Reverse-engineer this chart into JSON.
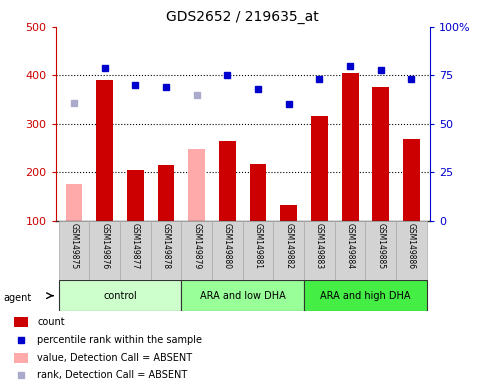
{
  "title": "GDS2652 / 219635_at",
  "categories": [
    "GSM149875",
    "GSM149876",
    "GSM149877",
    "GSM149878",
    "GSM149879",
    "GSM149880",
    "GSM149881",
    "GSM149882",
    "GSM149883",
    "GSM149884",
    "GSM149885",
    "GSM149886"
  ],
  "bar_values": [
    175,
    390,
    205,
    215,
    248,
    265,
    218,
    132,
    317,
    405,
    375,
    268
  ],
  "bar_absent": [
    true,
    false,
    false,
    false,
    true,
    false,
    false,
    false,
    false,
    false,
    false,
    false
  ],
  "rank_values": [
    61,
    79,
    70,
    69,
    65,
    75,
    68,
    60,
    73,
    80,
    78,
    73
  ],
  "rank_absent": [
    true,
    false,
    false,
    false,
    true,
    false,
    false,
    false,
    false,
    false,
    false,
    false
  ],
  "ylim_left": [
    100,
    500
  ],
  "ylim_right": [
    0,
    100
  ],
  "yticks_left": [
    100,
    200,
    300,
    400,
    500
  ],
  "yticks_right": [
    0,
    25,
    50,
    75,
    100
  ],
  "groups": [
    {
      "label": "control",
      "start": 0,
      "end": 3,
      "color": "#ccffcc"
    },
    {
      "label": "ARA and low DHA",
      "start": 4,
      "end": 7,
      "color": "#99ff99"
    },
    {
      "label": "ARA and high DHA",
      "start": 8,
      "end": 11,
      "color": "#44ee44"
    }
  ],
  "bar_color_present": "#cc0000",
  "bar_color_absent": "#ffaaaa",
  "rank_color_present": "#0000cc",
  "rank_color_absent": "#aaaacc",
  "legend": [
    {
      "label": "count",
      "color": "#cc0000",
      "type": "bar"
    },
    {
      "label": "percentile rank within the sample",
      "color": "#0000cc",
      "type": "square"
    },
    {
      "label": "value, Detection Call = ABSENT",
      "color": "#ffaaaa",
      "type": "bar"
    },
    {
      "label": "rank, Detection Call = ABSENT",
      "color": "#aaaacc",
      "type": "square"
    }
  ],
  "agent_label": "agent",
  "background_color": "#ffffff",
  "title_fontsize": 10,
  "axis_color_left": "#cc0000",
  "axis_color_right": "#0000cc"
}
